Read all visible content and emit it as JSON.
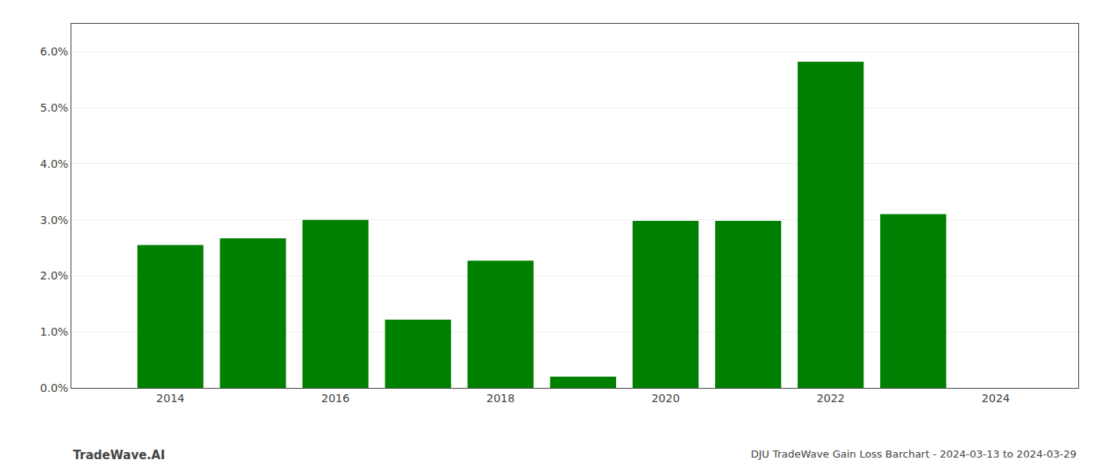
{
  "chart_data": {
    "type": "bar",
    "x": [
      2014,
      2015,
      2016,
      2017,
      2018,
      2019,
      2020,
      2021,
      2022,
      2023
    ],
    "values": [
      0.0255,
      0.0267,
      0.03,
      0.0122,
      0.0227,
      0.002,
      0.0298,
      0.0298,
      0.0582,
      0.031
    ],
    "color": "#008000",
    "xlim": [
      2012.8,
      2025.0
    ],
    "xticks": [
      2014,
      2016,
      2018,
      2020,
      2022,
      2024
    ],
    "ylim": [
      0,
      0.065
    ],
    "yticks": [
      {
        "value": 0.0,
        "label": "0.0%"
      },
      {
        "value": 0.01,
        "label": "1.0%"
      },
      {
        "value": 0.02,
        "label": "2.0%"
      },
      {
        "value": 0.03,
        "label": "3.0%"
      },
      {
        "value": 0.04,
        "label": "4.0%"
      },
      {
        "value": 0.05,
        "label": "5.0%"
      },
      {
        "value": 0.06,
        "label": "6.0%"
      }
    ],
    "grid": true,
    "annotations": [
      "TradeWave.AI",
      "DJU TradeWave Gain Loss Barchart - 2024-03-13 to 2024-03-29"
    ]
  }
}
